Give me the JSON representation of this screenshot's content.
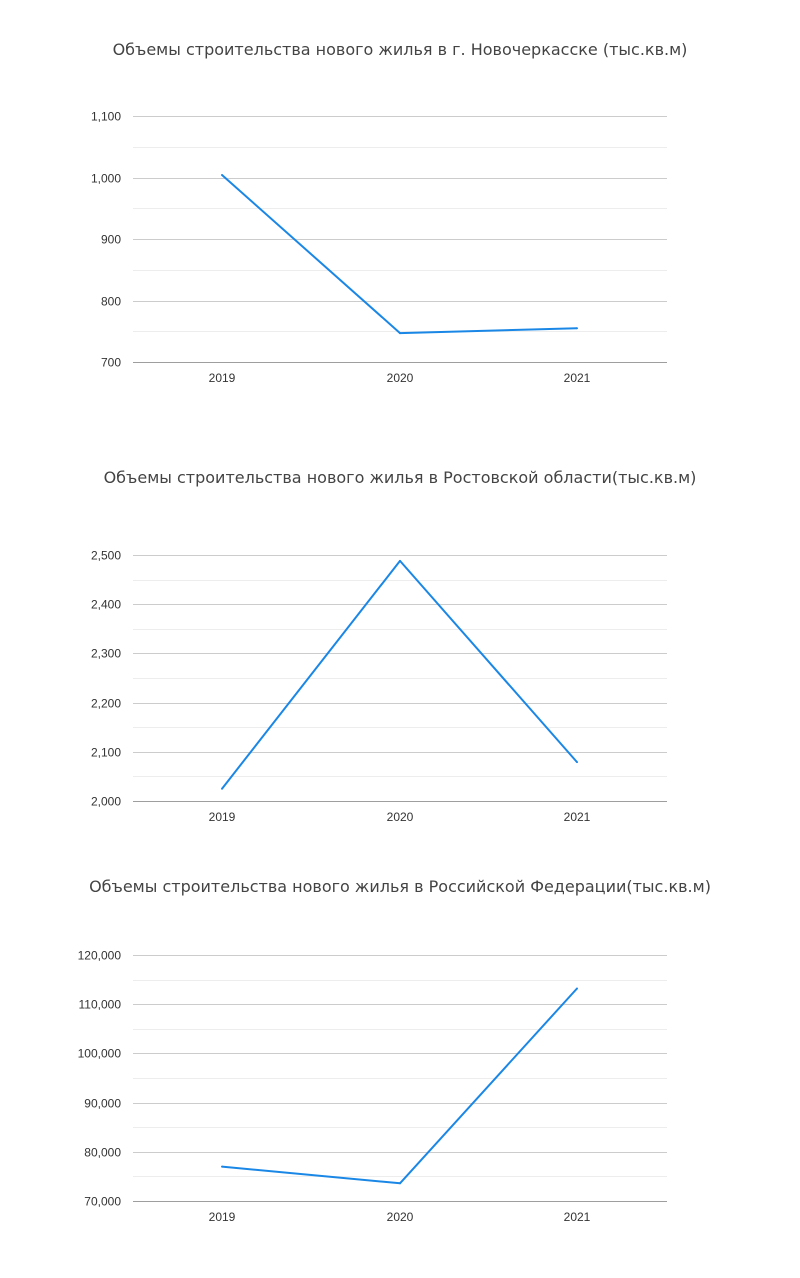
{
  "charts": [
    {
      "title": "Объемы строительства нового жилья в г. Новочеркасске (тыс.кв.м)",
      "type": "line",
      "color": "#1a87e6",
      "categories": [
        "2019",
        "2020",
        "2021"
      ],
      "values": [
        1004,
        747,
        755
      ],
      "ylim": [
        700,
        1100
      ],
      "yticks": [
        700,
        800,
        900,
        1000,
        1100
      ],
      "ytick_labels": [
        "700",
        "800",
        "900",
        "1,000",
        "1,100"
      ],
      "minor_grid": true
    },
    {
      "title": "Объемы строительства нового жилья в Ростовской области(тыс.кв.м)",
      "type": "line",
      "color": "#1a87e6",
      "categories": [
        "2019",
        "2020",
        "2021"
      ],
      "values": [
        2025,
        2488,
        2079
      ],
      "ylim": [
        2000,
        2500
      ],
      "yticks": [
        2000,
        2100,
        2200,
        2300,
        2400,
        2500
      ],
      "ytick_labels": [
        "2,000",
        "2,100",
        "2,200",
        "2,300",
        "2,400",
        "2,500"
      ],
      "minor_grid": true
    },
    {
      "title": "Объемы строительства нового жилья в Российской Федерации(тыс.кв.м)",
      "type": "line",
      "color": "#1a87e6",
      "categories": [
        "2019",
        "2020",
        "2021"
      ],
      "values": [
        77000,
        73600,
        113200
      ],
      "ylim": [
        70000,
        120000
      ],
      "yticks": [
        70000,
        80000,
        90000,
        100000,
        110000,
        120000
      ],
      "ytick_labels": [
        "70,000",
        "80,000",
        "90,000",
        "100,000",
        "110,000",
        "120,000"
      ],
      "minor_grid": true
    }
  ]
}
